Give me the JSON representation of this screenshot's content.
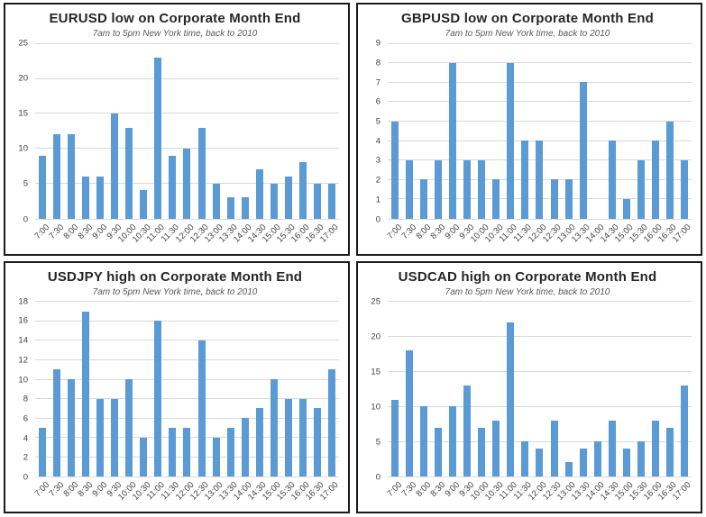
{
  "page": {
    "background": "#ffffff"
  },
  "colors": {
    "bar": "#5b9bd5",
    "gridline": "#d9d9d9",
    "panel_border": "#1b1b1b",
    "title_text": "#262626",
    "subtitle_text": "#595959",
    "tick_label": "#404040"
  },
  "chart_data": [
    {
      "type": "bar",
      "title": "EURUSD low on Corporate Month End",
      "subtitle": "7am to 5pm New York time, back to 2010",
      "categories": [
        "7:00",
        "7:30",
        "8:00",
        "8:30",
        "9:00",
        "9:30",
        "10:00",
        "10:30",
        "11:00",
        "11:30",
        "12:00",
        "12:30",
        "13:00",
        "13:30",
        "14:00",
        "14:30",
        "15:00",
        "15:30",
        "16:00",
        "16:30",
        "17:00"
      ],
      "values": [
        9,
        12,
        12,
        6,
        6,
        15,
        13,
        4,
        23,
        9,
        10,
        13,
        5,
        3,
        3,
        7,
        5,
        6,
        8,
        5,
        5
      ],
      "ylim": [
        0,
        25
      ],
      "y_ticks": [
        0,
        5,
        10,
        15,
        20,
        25
      ],
      "grid": true,
      "legend": "none",
      "x_tick_rotation": -45
    },
    {
      "type": "bar",
      "title": "GBPUSD low on Corporate Month End",
      "subtitle": "7am to 5pm New York time, back to 2010",
      "categories": [
        "7:00",
        "7:30",
        "8:00",
        "8:30",
        "9:00",
        "9:30",
        "10:00",
        "10:30",
        "11:00",
        "11:30",
        "12:00",
        "12:30",
        "13:00",
        "13:30",
        "14:00",
        "14:30",
        "15:00",
        "15:30",
        "16:00",
        "16:30",
        "17:00"
      ],
      "values": [
        5,
        3,
        2,
        3,
        8,
        3,
        3,
        2,
        8,
        4,
        4,
        2,
        2,
        7,
        0,
        4,
        1,
        3,
        4,
        5,
        3
      ],
      "ylim": [
        0,
        9
      ],
      "y_ticks": [
        0,
        1,
        2,
        3,
        4,
        5,
        6,
        7,
        8,
        9
      ],
      "grid": true,
      "legend": "none",
      "x_tick_rotation": -45
    },
    {
      "type": "bar",
      "title": "USDJPY high on Corporate Month End",
      "subtitle": "7am to 5pm New York time, back to 2010",
      "categories": [
        "7:00",
        "7:30",
        "8:00",
        "8:30",
        "9:00",
        "9:30",
        "10:00",
        "10:30",
        "11:00",
        "11:30",
        "12:00",
        "12:30",
        "13:00",
        "13:30",
        "14:00",
        "14:30",
        "15:00",
        "15:30",
        "16:00",
        "16:30",
        "17:00"
      ],
      "values": [
        5,
        11,
        10,
        17,
        8,
        8,
        10,
        4,
        16,
        5,
        5,
        14,
        4,
        5,
        6,
        7,
        10,
        8,
        8,
        7,
        11
      ],
      "ylim": [
        0,
        18
      ],
      "y_ticks": [
        0,
        2,
        4,
        6,
        8,
        10,
        12,
        14,
        16,
        18
      ],
      "grid": true,
      "legend": "none",
      "x_tick_rotation": -45
    },
    {
      "type": "bar",
      "title": "USDCAD high on Corporate Month End",
      "subtitle": "7am to 5pm New York time, back to 2010",
      "categories": [
        "7:00",
        "7:30",
        "8:00",
        "8:30",
        "9:00",
        "9:30",
        "10:00",
        "10:30",
        "11:00",
        "11:30",
        "12:00",
        "12:30",
        "13:00",
        "13:30",
        "14:00",
        "14:30",
        "15:00",
        "15:30",
        "16:00",
        "16:30",
        "17:00"
      ],
      "values": [
        11,
        18,
        10,
        7,
        10,
        13,
        7,
        8,
        22,
        5,
        4,
        8,
        2,
        4,
        5,
        8,
        4,
        5,
        8,
        7,
        13
      ],
      "ylim": [
        0,
        25
      ],
      "y_ticks": [
        0,
        5,
        10,
        15,
        20,
        25
      ],
      "grid": true,
      "legend": "none",
      "x_tick_rotation": -45
    }
  ]
}
